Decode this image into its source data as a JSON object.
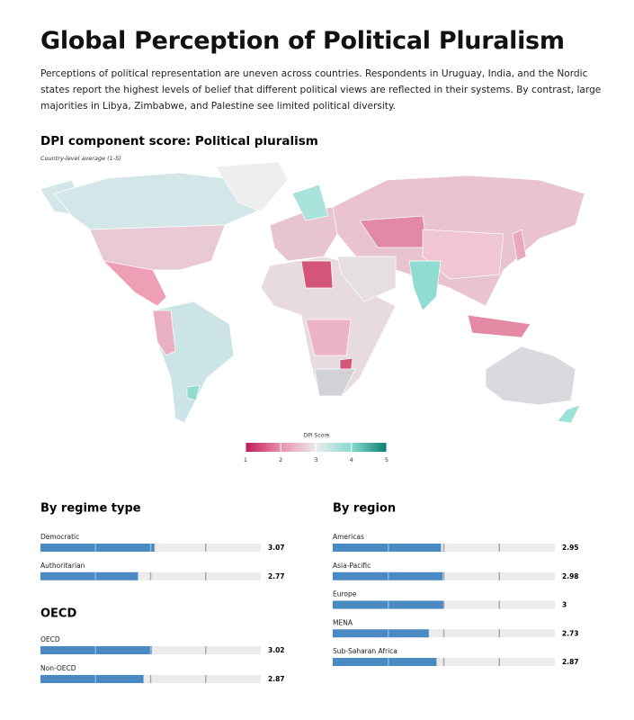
{
  "header": {
    "title": "Global Perception of Political Pluralism",
    "description": "Perceptions of political representation are uneven across countries. Respondents in Uruguay, India, and the Nordic states report the highest levels of belief that different political views are reflected in their systems. By contrast, large majorities in Libya, Zimbabwe, and Palestine see limited political diversity."
  },
  "map": {
    "title": "DPI component score: Political pluralism",
    "subtitle": "Country-level average (1-5)",
    "legend": {
      "title": "DPI Score",
      "ticks": [
        1,
        2,
        3,
        4,
        5
      ],
      "colors": [
        "#c2185b",
        "#ea8fab",
        "#ececec",
        "#86dbd1",
        "#0b7f6e"
      ]
    }
  },
  "chart_data": [
    {
      "type": "bar",
      "title": "By regime type",
      "categories": [
        "Democratic",
        "Authoritarian"
      ],
      "values": [
        3.07,
        2.77
      ],
      "color": "#4a8ac4",
      "xlim": [
        1,
        5
      ],
      "xticks": [
        2,
        3,
        4
      ]
    },
    {
      "type": "bar",
      "title": "OECD",
      "categories": [
        "OECD",
        "Non-OECD"
      ],
      "values": [
        3.02,
        2.87
      ],
      "color": "#4a8ac4",
      "xlim": [
        1,
        5
      ],
      "xticks": [
        2,
        3,
        4
      ]
    },
    {
      "type": "bar",
      "title": "By region",
      "categories": [
        "Americas",
        "Asia-Pacific",
        "Europe",
        "MENA",
        "Sub-Saharan Africa"
      ],
      "values": [
        2.95,
        2.98,
        3,
        2.73,
        2.87
      ],
      "color": "#4a8ac4",
      "xlim": [
        1,
        5
      ],
      "xticks": [
        2,
        3,
        4
      ]
    }
  ]
}
